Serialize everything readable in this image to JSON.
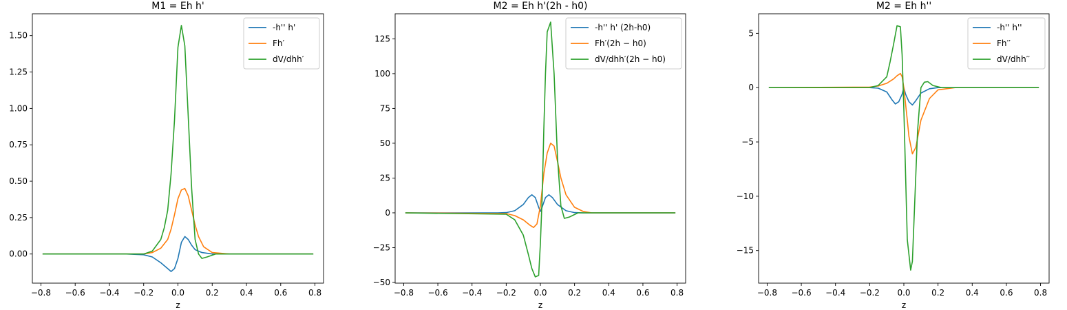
{
  "chart_data": [
    {
      "type": "line",
      "title": "M1 = Eh h'",
      "xlabel": "z",
      "ylabel": "",
      "xlim": [
        -0.85,
        0.85
      ],
      "ylim": [
        -0.2,
        1.65
      ],
      "xticks": [
        "-0.8",
        "-0.6",
        "-0.4",
        "-0.2",
        "0.0",
        "0.2",
        "0.4",
        "0.6",
        "0.8"
      ],
      "yticks": [
        "0.00",
        "0.25",
        "0.50",
        "0.75",
        "1.00",
        "1.25",
        "1.50"
      ],
      "legend_position": "top-right",
      "series": [
        {
          "name": "-h'' h'",
          "color": "#1f77b4",
          "x": [
            -0.79,
            -0.3,
            -0.2,
            -0.15,
            -0.1,
            -0.06,
            -0.04,
            -0.02,
            0.0,
            0.02,
            0.04,
            0.06,
            0.08,
            0.1,
            0.14,
            0.2,
            0.3,
            0.79
          ],
          "y": [
            0,
            0,
            -0.005,
            -0.02,
            -0.06,
            -0.1,
            -0.12,
            -0.1,
            -0.03,
            0.08,
            0.12,
            0.1,
            0.06,
            0.03,
            0.01,
            0.0,
            0,
            0
          ]
        },
        {
          "name": "Fh′",
          "color": "#ff7f0e",
          "x": [
            -0.79,
            -0.2,
            -0.15,
            -0.1,
            -0.06,
            -0.04,
            -0.02,
            0.0,
            0.02,
            0.04,
            0.06,
            0.08,
            0.1,
            0.12,
            0.15,
            0.2,
            0.3,
            0.79
          ],
          "y": [
            0,
            0.0,
            0.01,
            0.04,
            0.1,
            0.17,
            0.27,
            0.38,
            0.44,
            0.45,
            0.4,
            0.3,
            0.2,
            0.12,
            0.05,
            0.01,
            0,
            0
          ]
        },
        {
          "name": "dV/dhh′",
          "color": "#2ca02c",
          "x": [
            -0.79,
            -0.2,
            -0.15,
            -0.1,
            -0.08,
            -0.06,
            -0.04,
            -0.02,
            0.0,
            0.02,
            0.04,
            0.06,
            0.08,
            0.1,
            0.12,
            0.14,
            0.17,
            0.22,
            0.79
          ],
          "y": [
            0,
            0.0,
            0.02,
            0.1,
            0.18,
            0.3,
            0.55,
            0.92,
            1.42,
            1.57,
            1.43,
            0.95,
            0.45,
            0.1,
            0.0,
            -0.03,
            -0.02,
            0.0,
            0
          ]
        }
      ]
    },
    {
      "type": "line",
      "title": "M2 = Eh h'(2h - h0)",
      "xlabel": "z",
      "ylabel": "",
      "xlim": [
        -0.85,
        0.85
      ],
      "ylim": [
        -50.5,
        143
      ],
      "xticks": [
        "-0.8",
        "-0.6",
        "-0.4",
        "-0.2",
        "0.0",
        "0.2",
        "0.4",
        "0.6",
        "0.8"
      ],
      "yticks": [
        "-50",
        "-25",
        "0",
        "25",
        "50",
        "75",
        "100",
        "125"
      ],
      "legend_position": "top-right",
      "series": [
        {
          "name": "-h'' h' (2h-h0)",
          "color": "#1f77b4",
          "x": [
            -0.79,
            -0.25,
            -0.2,
            -0.15,
            -0.1,
            -0.07,
            -0.05,
            -0.03,
            -0.01,
            0.0,
            0.01,
            0.03,
            0.05,
            0.07,
            0.1,
            0.15,
            0.2,
            0.25,
            0.79
          ],
          "y": [
            0,
            0,
            0.2,
            1.5,
            6,
            11,
            13,
            11,
            4,
            1,
            4,
            11,
            13,
            11,
            6,
            1.5,
            0.2,
            0,
            0
          ]
        },
        {
          "name": "Fh′(2h − h0)",
          "color": "#ff7f0e",
          "x": [
            -0.79,
            -0.2,
            -0.15,
            -0.1,
            -0.06,
            -0.04,
            -0.02,
            0.0,
            0.02,
            0.04,
            0.06,
            0.08,
            0.1,
            0.12,
            0.15,
            0.2,
            0.25,
            0.3,
            0.79
          ],
          "y": [
            0,
            -0.5,
            -2,
            -5,
            -9,
            -10.5,
            -8,
            5,
            28,
            43,
            50,
            48,
            37,
            25,
            13,
            4,
            1,
            0,
            0
          ]
        },
        {
          "name": "dV/dhh′(2h − h0)",
          "color": "#2ca02c",
          "x": [
            -0.79,
            -0.2,
            -0.15,
            -0.1,
            -0.07,
            -0.05,
            -0.03,
            -0.01,
            0.0,
            0.01,
            0.02,
            0.03,
            0.04,
            0.06,
            0.08,
            0.1,
            0.12,
            0.14,
            0.17,
            0.22,
            0.79
          ],
          "y": [
            0,
            -1,
            -5,
            -16,
            -30,
            -40,
            -46,
            -45,
            -22,
            10,
            60,
            100,
            130,
            137,
            100,
            40,
            5,
            -4,
            -3,
            0,
            0
          ]
        }
      ]
    },
    {
      "type": "line",
      "title": "M2 = Eh h''",
      "xlabel": "z",
      "ylabel": "",
      "xlim": [
        -0.85,
        0.85
      ],
      "ylim": [
        -18,
        6.8
      ],
      "xticks": [
        "-0.8",
        "-0.6",
        "-0.4",
        "-0.2",
        "0.0",
        "0.2",
        "0.4",
        "0.6",
        "0.8"
      ],
      "yticks": [
        "-15",
        "-10",
        "-5",
        "0",
        "5"
      ],
      "legend_position": "top-right",
      "series": [
        {
          "name": "-h'' h''",
          "color": "#1f77b4",
          "x": [
            -0.79,
            -0.2,
            -0.15,
            -0.1,
            -0.07,
            -0.05,
            -0.03,
            -0.01,
            0.0,
            0.01,
            0.03,
            0.05,
            0.07,
            0.1,
            0.15,
            0.2,
            0.79
          ],
          "y": [
            0,
            0,
            -0.05,
            -0.4,
            -1.1,
            -1.5,
            -1.3,
            -0.6,
            0.0,
            -0.6,
            -1.3,
            -1.6,
            -1.2,
            -0.5,
            -0.1,
            0,
            0
          ]
        },
        {
          "name": "Fh′′",
          "color": "#ff7f0e",
          "x": [
            -0.79,
            -0.2,
            -0.15,
            -0.1,
            -0.06,
            -0.04,
            -0.02,
            -0.01,
            0.0,
            0.01,
            0.02,
            0.03,
            0.05,
            0.07,
            0.1,
            0.15,
            0.2,
            0.3,
            0.79
          ],
          "y": [
            0,
            0.05,
            0.15,
            0.4,
            0.8,
            1.1,
            1.3,
            1.0,
            0.0,
            -1.5,
            -3.0,
            -4.5,
            -6.1,
            -5.5,
            -3.0,
            -1.0,
            -0.2,
            0,
            0
          ]
        },
        {
          "name": "dV/dhh′′",
          "color": "#2ca02c",
          "x": [
            -0.79,
            -0.2,
            -0.15,
            -0.1,
            -0.08,
            -0.06,
            -0.04,
            -0.02,
            -0.01,
            0.0,
            0.01,
            0.02,
            0.04,
            0.05,
            0.06,
            0.08,
            0.1,
            0.12,
            0.14,
            0.17,
            0.22,
            0.79
          ],
          "y": [
            0,
            0.0,
            0.2,
            1.0,
            2.4,
            4.0,
            5.7,
            5.6,
            3.0,
            -2.0,
            -8.0,
            -14.0,
            -16.8,
            -16.0,
            -12.0,
            -4.0,
            0.0,
            0.5,
            0.55,
            0.2,
            0.0,
            0
          ]
        }
      ]
    }
  ]
}
